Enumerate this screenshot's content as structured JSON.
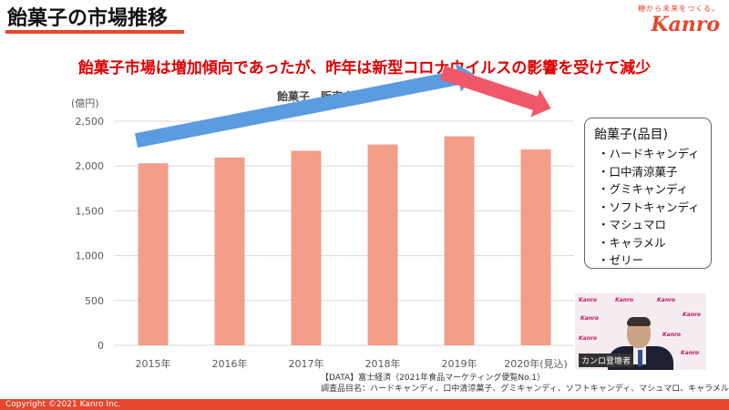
{
  "slide": {
    "title": "飴菓子の市場推移",
    "logo_tagline": "糖から未来をつくる。",
    "logo_brand": "Kanro",
    "headline": "飴菓子市場は増加傾向であったが、昨年は新型コロナウイルスの影響を受けて減少",
    "copyright": "Copyright ©2021  Kanro Inc."
  },
  "chart_data": {
    "type": "bar",
    "title": "飴菓子　販売金額",
    "unit_label": "(億円)",
    "categories": [
      "2015年",
      "2016年",
      "2017年",
      "2018年",
      "2019年",
      "2020年(見込)"
    ],
    "values": [
      2030,
      2095,
      2170,
      2240,
      2330,
      2185
    ],
    "ylim": [
      0,
      2500
    ],
    "yticks": [
      0,
      500,
      1000,
      1500,
      2000,
      2500
    ],
    "ytick_labels": [
      "0",
      "500",
      "1,000",
      "1,500",
      "2,000",
      "2,500"
    ],
    "grid": true,
    "bar_color": "#f29e88",
    "annotations": [
      {
        "type": "trend-arrow",
        "name": "increase-arrow",
        "from": "2015年",
        "to": "2019年",
        "color": "#5b9be0"
      },
      {
        "type": "trend-arrow",
        "name": "decrease-arrow",
        "from": "2019年",
        "to": "2020年(見込)",
        "color": "#f0586a"
      }
    ]
  },
  "legend": {
    "title": "飴菓子(品目)",
    "items": [
      "・ハードキャンディ",
      "・口中清涼菓子",
      "・グミキャンディ",
      "・ソフトキャンディ",
      "・マシュマロ",
      "・キャラメル",
      "・ゼリー"
    ]
  },
  "video": {
    "caption": "カンロ登壇者",
    "wall_text": "Kanro"
  },
  "source": {
    "line1": "【DATA】富士経済（2021年食品マーケティング便覧No.1）",
    "line2": "調査品目名：ハードキャンディ、口中清涼菓子、グミキャンディ、ソフトキャンディ、マシュマロ、キャラメル、ゼリー"
  },
  "colors": {
    "accent": "#e8452c",
    "headline": "#e00000",
    "grid": "#d9d9d9",
    "axis_text": "#595959"
  }
}
